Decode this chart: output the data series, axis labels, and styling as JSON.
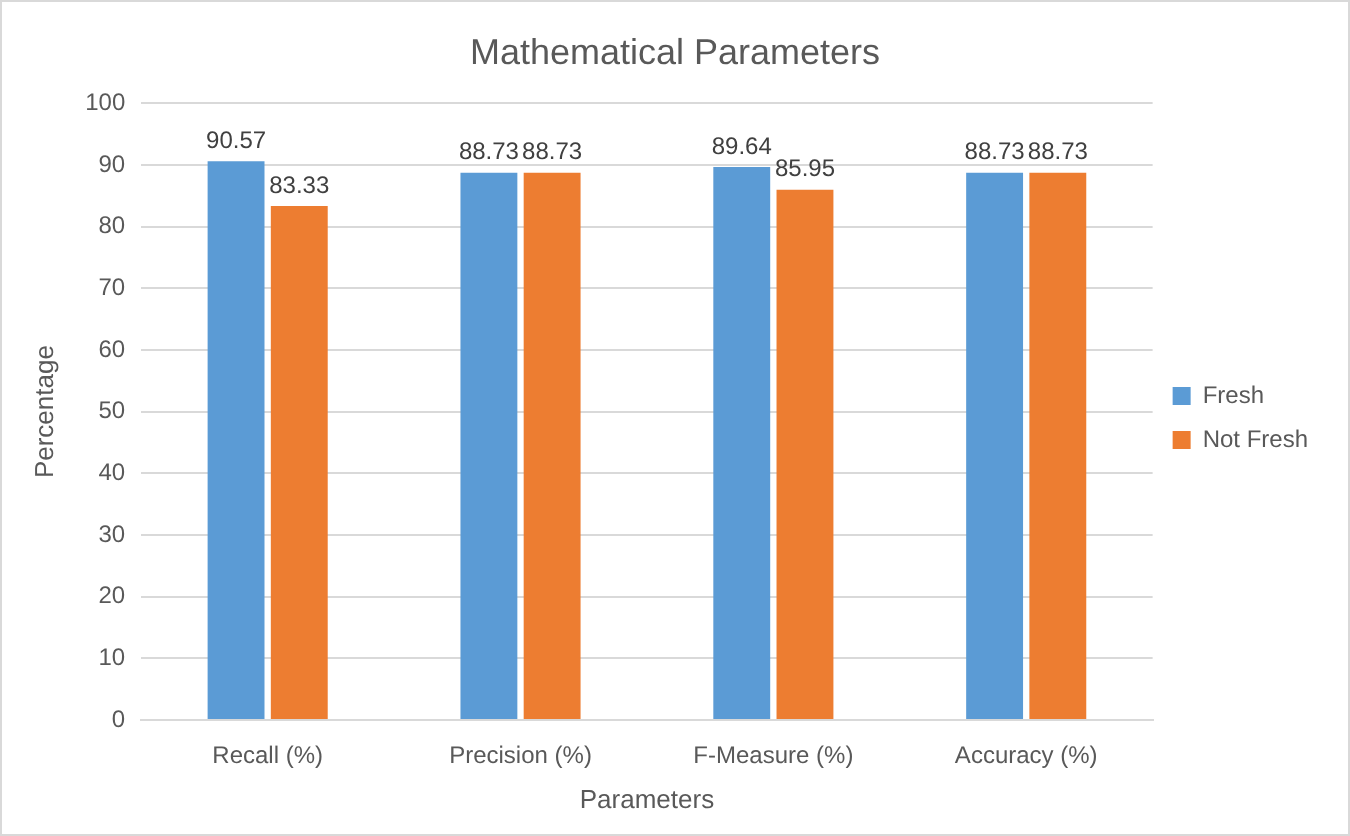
{
  "chart_data": {
    "type": "bar",
    "title": "Mathematical Parameters",
    "xlabel": "Parameters",
    "ylabel": "Percentage",
    "categories": [
      "Recall (%)",
      "Precision (%)",
      "F-Measure (%)",
      "Accuracy (%)"
    ],
    "series": [
      {
        "name": "Fresh",
        "color": "#5b9bd5",
        "values": [
          90.57,
          88.73,
          89.64,
          88.73
        ]
      },
      {
        "name": "Not Fresh",
        "color": "#ed7d31",
        "values": [
          83.33,
          88.73,
          85.95,
          88.73
        ]
      }
    ],
    "ylim": [
      0,
      100
    ],
    "yticks": [
      0,
      10,
      20,
      30,
      40,
      50,
      60,
      70,
      80,
      90,
      100
    ],
    "grid": "y",
    "legend": "right",
    "data_labels": true
  }
}
